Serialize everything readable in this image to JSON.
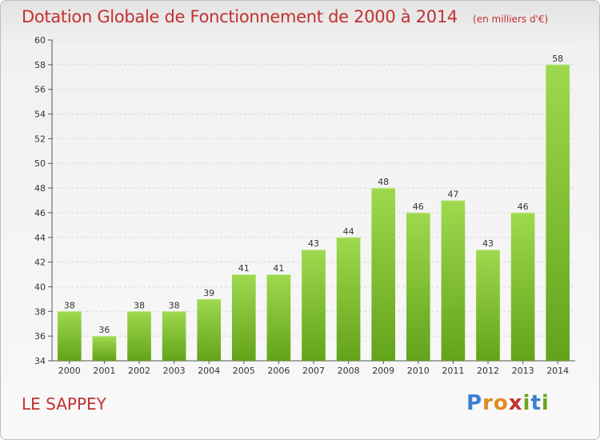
{
  "title": "Dotation Globale de Fonctionnement de 2000 à 2014",
  "unit_note": "(en milliers d'€)",
  "commune": "LE SAPPEY",
  "logo": {
    "text": "Proxiti",
    "letters": [
      {
        "ch": "P",
        "color": "#3a7fd0"
      },
      {
        "ch": "r",
        "color": "#e08a1e"
      },
      {
        "ch": "o",
        "color": "#e08a1e"
      },
      {
        "ch": "x",
        "color": "#c43030"
      },
      {
        "ch": "i",
        "color": "#6aa51e"
      },
      {
        "ch": "t",
        "color": "#3a7fd0"
      },
      {
        "ch": "i",
        "color": "#6aa51e"
      }
    ]
  },
  "colors": {
    "bar_light": "#9ed94e",
    "bar_dark": "#63a31a",
    "title": "#c43030",
    "grid": "#d8d8d8"
  },
  "chart_data": {
    "type": "bar",
    "title": "Dotation Globale de Fonctionnement de 2000 à 2014",
    "categories": [
      "2000",
      "2001",
      "2002",
      "2003",
      "2004",
      "2005",
      "2006",
      "2007",
      "2008",
      "2009",
      "2010",
      "2011",
      "2012",
      "2013",
      "2014"
    ],
    "values": [
      38,
      36,
      38,
      38,
      39,
      41,
      41,
      43,
      44,
      48,
      46,
      47,
      43,
      46,
      58
    ],
    "xlabel": "",
    "ylabel": "",
    "ylim": [
      34,
      60
    ],
    "yticks": [
      34,
      36,
      38,
      40,
      42,
      44,
      46,
      48,
      50,
      52,
      54,
      56,
      58,
      60
    ],
    "grid": true,
    "data_labels": true
  }
}
